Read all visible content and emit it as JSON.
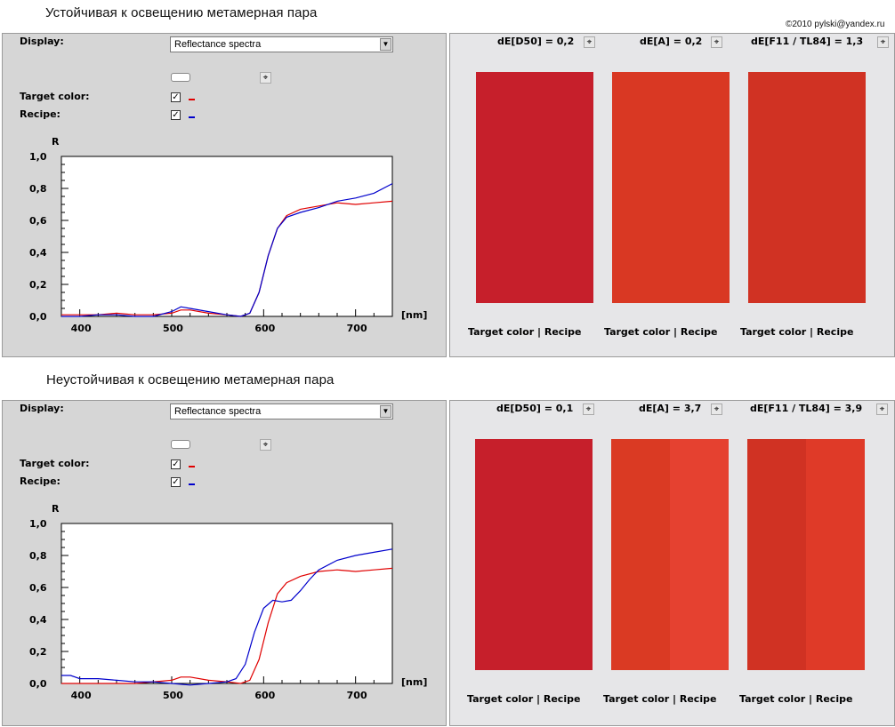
{
  "copyright": "©2010 pylski@yandex.ru",
  "sections": [
    {
      "heading": "Устойчивая к освещению метамерная пара",
      "display_label": "Display:",
      "display_value": "Reflectance spectra",
      "target_label": "Target color:",
      "recipe_label": "Recipe:",
      "de": [
        {
          "label": "dE[D50] = 0,2"
        },
        {
          "label": "dE[A] = 0,2"
        },
        {
          "label": "dE[F11 / TL84] = 1,3"
        }
      ],
      "swatches": [
        {
          "target": "#c61f2b",
          "recipe": "#c61f2b",
          "caption": "Target color | Recipe"
        },
        {
          "target": "#d93823",
          "recipe": "#d93823",
          "caption": "Target color | Recipe"
        },
        {
          "target": "#d03223",
          "recipe": "#d03223",
          "caption": "Target color | Recipe"
        }
      ],
      "chart_data": {
        "type": "line",
        "ylabel": "R",
        "xlabel": "[nm]",
        "xlim": [
          380,
          740
        ],
        "ylim": [
          0,
          1.0
        ],
        "x_ticks": [
          "400",
          "500",
          "600",
          "700"
        ],
        "y_ticks": [
          "0,0",
          "0,2",
          "0,4",
          "0,6",
          "0,8",
          "1,0"
        ],
        "series": [
          {
            "color": "#e00000",
            "x": [
              380,
              400,
              420,
              440,
              460,
              480,
              500,
              510,
              520,
              540,
              560,
              575,
              585,
              595,
              605,
              615,
              625,
              640,
              660,
              680,
              700,
              720,
              740
            ],
            "y": [
              0.01,
              0.01,
              0.01,
              0.02,
              0.01,
              0.01,
              0.02,
              0.04,
              0.04,
              0.02,
              0.01,
              0.0,
              0.02,
              0.15,
              0.38,
              0.55,
              0.63,
              0.67,
              0.69,
              0.71,
              0.7,
              0.71,
              0.72
            ]
          },
          {
            "color": "#0000cc",
            "x": [
              380,
              400,
              420,
              440,
              460,
              480,
              500,
              510,
              520,
              540,
              560,
              575,
              585,
              595,
              605,
              615,
              625,
              640,
              660,
              680,
              700,
              720,
              740
            ],
            "y": [
              0.0,
              0.0,
              0.01,
              0.01,
              0.0,
              0.0,
              0.03,
              0.06,
              0.05,
              0.03,
              0.01,
              0.0,
              0.02,
              0.15,
              0.38,
              0.55,
              0.62,
              0.65,
              0.68,
              0.72,
              0.74,
              0.77,
              0.83
            ]
          }
        ]
      }
    },
    {
      "heading": "Неустойчивая к освещению метамерная пара",
      "display_label": "Display:",
      "display_value": "Reflectance spectra",
      "target_label": "Target color:",
      "recipe_label": "Recipe:",
      "de": [
        {
          "label": "dE[D50] = 0,1"
        },
        {
          "label": "dE[A] = 3,7"
        },
        {
          "label": "dE[F11 / TL84] = 3,9"
        }
      ],
      "swatches": [
        {
          "target": "#c61f2b",
          "recipe": "#c61f2b",
          "caption": "Target color | Recipe"
        },
        {
          "target": "#da3a23",
          "recipe": "#e54130",
          "caption": "Target color | Recipe"
        },
        {
          "target": "#d03223",
          "recipe": "#df3a28",
          "caption": "Target color | Recipe"
        }
      ],
      "chart_data": {
        "type": "line",
        "ylabel": "R",
        "xlabel": "[nm]",
        "xlim": [
          380,
          740
        ],
        "ylim": [
          0,
          1.0
        ],
        "x_ticks": [
          "400",
          "500",
          "600",
          "700"
        ],
        "y_ticks": [
          "0,0",
          "0,2",
          "0,4",
          "0,6",
          "0,8",
          "1,0"
        ],
        "series": [
          {
            "color": "#e00000",
            "x": [
              380,
              400,
              420,
              440,
              460,
              480,
              500,
              510,
              520,
              540,
              560,
              575,
              585,
              595,
              605,
              615,
              625,
              640,
              660,
              680,
              700,
              720,
              740
            ],
            "y": [
              0.0,
              0.0,
              0.0,
              0.0,
              0.0,
              0.01,
              0.02,
              0.04,
              0.04,
              0.02,
              0.01,
              0.0,
              0.02,
              0.15,
              0.38,
              0.56,
              0.63,
              0.67,
              0.7,
              0.71,
              0.7,
              0.71,
              0.72
            ]
          },
          {
            "color": "#0000cc",
            "x": [
              380,
              390,
              400,
              420,
              440,
              460,
              480,
              500,
              520,
              540,
              560,
              570,
              580,
              590,
              600,
              610,
              620,
              630,
              640,
              650,
              660,
              680,
              700,
              720,
              740
            ],
            "y": [
              0.05,
              0.05,
              0.03,
              0.03,
              0.02,
              0.01,
              0.01,
              0.0,
              -0.01,
              0.0,
              0.01,
              0.03,
              0.12,
              0.32,
              0.47,
              0.52,
              0.51,
              0.52,
              0.58,
              0.65,
              0.71,
              0.77,
              0.8,
              0.82,
              0.84
            ]
          }
        ]
      }
    }
  ]
}
